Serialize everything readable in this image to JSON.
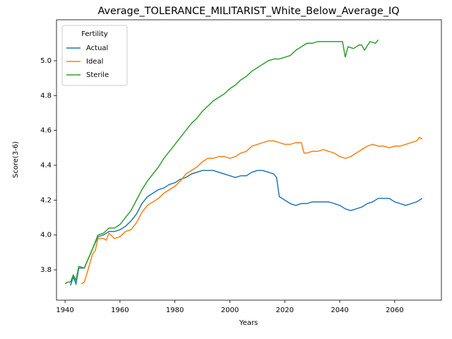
{
  "chart_data": {
    "type": "line",
    "title": "Average_TOLERANCE_MILITARIST_White_Below_Average_IQ",
    "x_label": "Years",
    "y_label": "Score(3-6)",
    "legend_title": "Fertility",
    "legend_position": "upper left",
    "xlim": [
      1936.9,
      2077
    ],
    "ylim": [
      3.626,
      5.235
    ],
    "xticks": [
      1940,
      1960,
      1980,
      2000,
      2020,
      2040,
      2060
    ],
    "yticks": [
      3.8,
      {
        "value": 4,
        "label": "4.0"
      },
      4.2,
      4.4,
      4.6,
      4.8,
      {
        "value": 5,
        "label": "5.0"
      }
    ],
    "series": [
      {
        "name": "Actual",
        "color": "#1f77b4",
        "x": [
          1942,
          1943,
          1944,
          1945,
          1947,
          1950,
          1952,
          1954,
          1956,
          1958,
          1960,
          1962,
          1964,
          1966,
          1968,
          1970,
          1972,
          1974,
          1976,
          1978,
          1980,
          1982,
          1984,
          1986,
          1988,
          1990,
          1992,
          1994,
          1996,
          1998,
          2000,
          2002,
          2004,
          2006,
          2008,
          2010,
          2012,
          2014,
          2016,
          2017,
          2018,
          2020,
          2022,
          2024,
          2026,
          2028,
          2030,
          2032,
          2034,
          2036,
          2038,
          2040,
          2042,
          2044,
          2046,
          2048,
          2050,
          2052,
          2054,
          2056,
          2058,
          2060,
          2062,
          2064,
          2066,
          2068,
          2070
        ],
        "values": [
          3.71,
          3.76,
          3.72,
          3.81,
          3.81,
          3.92,
          3.99,
          4.0,
          4.02,
          4.02,
          4.03,
          4.05,
          4.08,
          4.12,
          4.18,
          4.22,
          4.24,
          4.26,
          4.27,
          4.29,
          4.3,
          4.32,
          4.33,
          4.35,
          4.36,
          4.37,
          4.37,
          4.37,
          4.36,
          4.35,
          4.34,
          4.33,
          4.34,
          4.34,
          4.36,
          4.37,
          4.37,
          4.36,
          4.35,
          4.33,
          4.22,
          4.2,
          4.18,
          4.17,
          4.18,
          4.18,
          4.19,
          4.19,
          4.19,
          4.19,
          4.18,
          4.17,
          4.15,
          4.14,
          4.15,
          4.16,
          4.18,
          4.19,
          4.21,
          4.21,
          4.21,
          4.19,
          4.18,
          4.17,
          4.18,
          4.19,
          4.21
        ]
      },
      {
        "name": "Ideal",
        "color": "#ff7f0e",
        "x": [
          1946,
          1947,
          1948,
          1950,
          1951,
          1952,
          1954,
          1955,
          1956,
          1958,
          1960,
          1962,
          1964,
          1966,
          1968,
          1970,
          1972,
          1974,
          1976,
          1978,
          1980,
          1982,
          1984,
          1986,
          1988,
          1990,
          1992,
          1994,
          1996,
          1998,
          2000,
          2002,
          2004,
          2006,
          2008,
          2010,
          2012,
          2014,
          2016,
          2018,
          2020,
          2022,
          2024,
          2026,
          2027,
          2028,
          2030,
          2032,
          2034,
          2036,
          2038,
          2040,
          2042,
          2044,
          2046,
          2048,
          2050,
          2052,
          2054,
          2056,
          2058,
          2060,
          2062,
          2064,
          2066,
          2068,
          2069,
          2070
        ],
        "values": [
          3.72,
          3.73,
          3.78,
          3.89,
          3.91,
          3.98,
          3.98,
          3.97,
          4.01,
          3.98,
          3.99,
          4.02,
          4.03,
          4.07,
          4.13,
          4.17,
          4.19,
          4.21,
          4.24,
          4.26,
          4.28,
          4.31,
          4.35,
          4.37,
          4.39,
          4.42,
          4.44,
          4.44,
          4.45,
          4.45,
          4.44,
          4.45,
          4.47,
          4.48,
          4.51,
          4.52,
          4.53,
          4.54,
          4.54,
          4.53,
          4.52,
          4.52,
          4.53,
          4.53,
          4.47,
          4.47,
          4.48,
          4.48,
          4.49,
          4.48,
          4.47,
          4.45,
          4.44,
          4.45,
          4.47,
          4.49,
          4.51,
          4.52,
          4.51,
          4.51,
          4.5,
          4.51,
          4.51,
          4.52,
          4.53,
          4.54,
          4.56,
          4.55
        ]
      },
      {
        "name": "Sterile",
        "color": "#2ca02c",
        "x": [
          1940,
          1941,
          1942,
          1943,
          1944,
          1945,
          1947,
          1950,
          1952,
          1954,
          1956,
          1958,
          1960,
          1962,
          1964,
          1966,
          1968,
          1970,
          1972,
          1974,
          1976,
          1978,
          1980,
          1982,
          1984,
          1986,
          1988,
          1990,
          1992,
          1994,
          1996,
          1998,
          2000,
          2002,
          2004,
          2006,
          2008,
          2010,
          2012,
          2014,
          2016,
          2018,
          2020,
          2022,
          2024,
          2026,
          2028,
          2030,
          2032,
          2034,
          2036,
          2038,
          2040,
          2041,
          2042,
          2043,
          2045,
          2047,
          2048,
          2049,
          2051,
          2053,
          2054
        ],
        "values": [
          3.72,
          3.73,
          3.73,
          3.77,
          3.74,
          3.82,
          3.81,
          3.92,
          4.0,
          4.01,
          4.04,
          4.04,
          4.06,
          4.1,
          4.14,
          4.2,
          4.26,
          4.31,
          4.35,
          4.39,
          4.44,
          4.48,
          4.52,
          4.56,
          4.6,
          4.64,
          4.67,
          4.71,
          4.74,
          4.77,
          4.79,
          4.81,
          4.84,
          4.86,
          4.89,
          4.91,
          4.94,
          4.96,
          4.98,
          5.0,
          5.01,
          5.01,
          5.02,
          5.03,
          5.06,
          5.08,
          5.1,
          5.1,
          5.11,
          5.11,
          5.11,
          5.11,
          5.11,
          5.11,
          5.02,
          5.08,
          5.07,
          5.09,
          5.09,
          5.06,
          5.11,
          5.1,
          5.12
        ]
      }
    ]
  }
}
